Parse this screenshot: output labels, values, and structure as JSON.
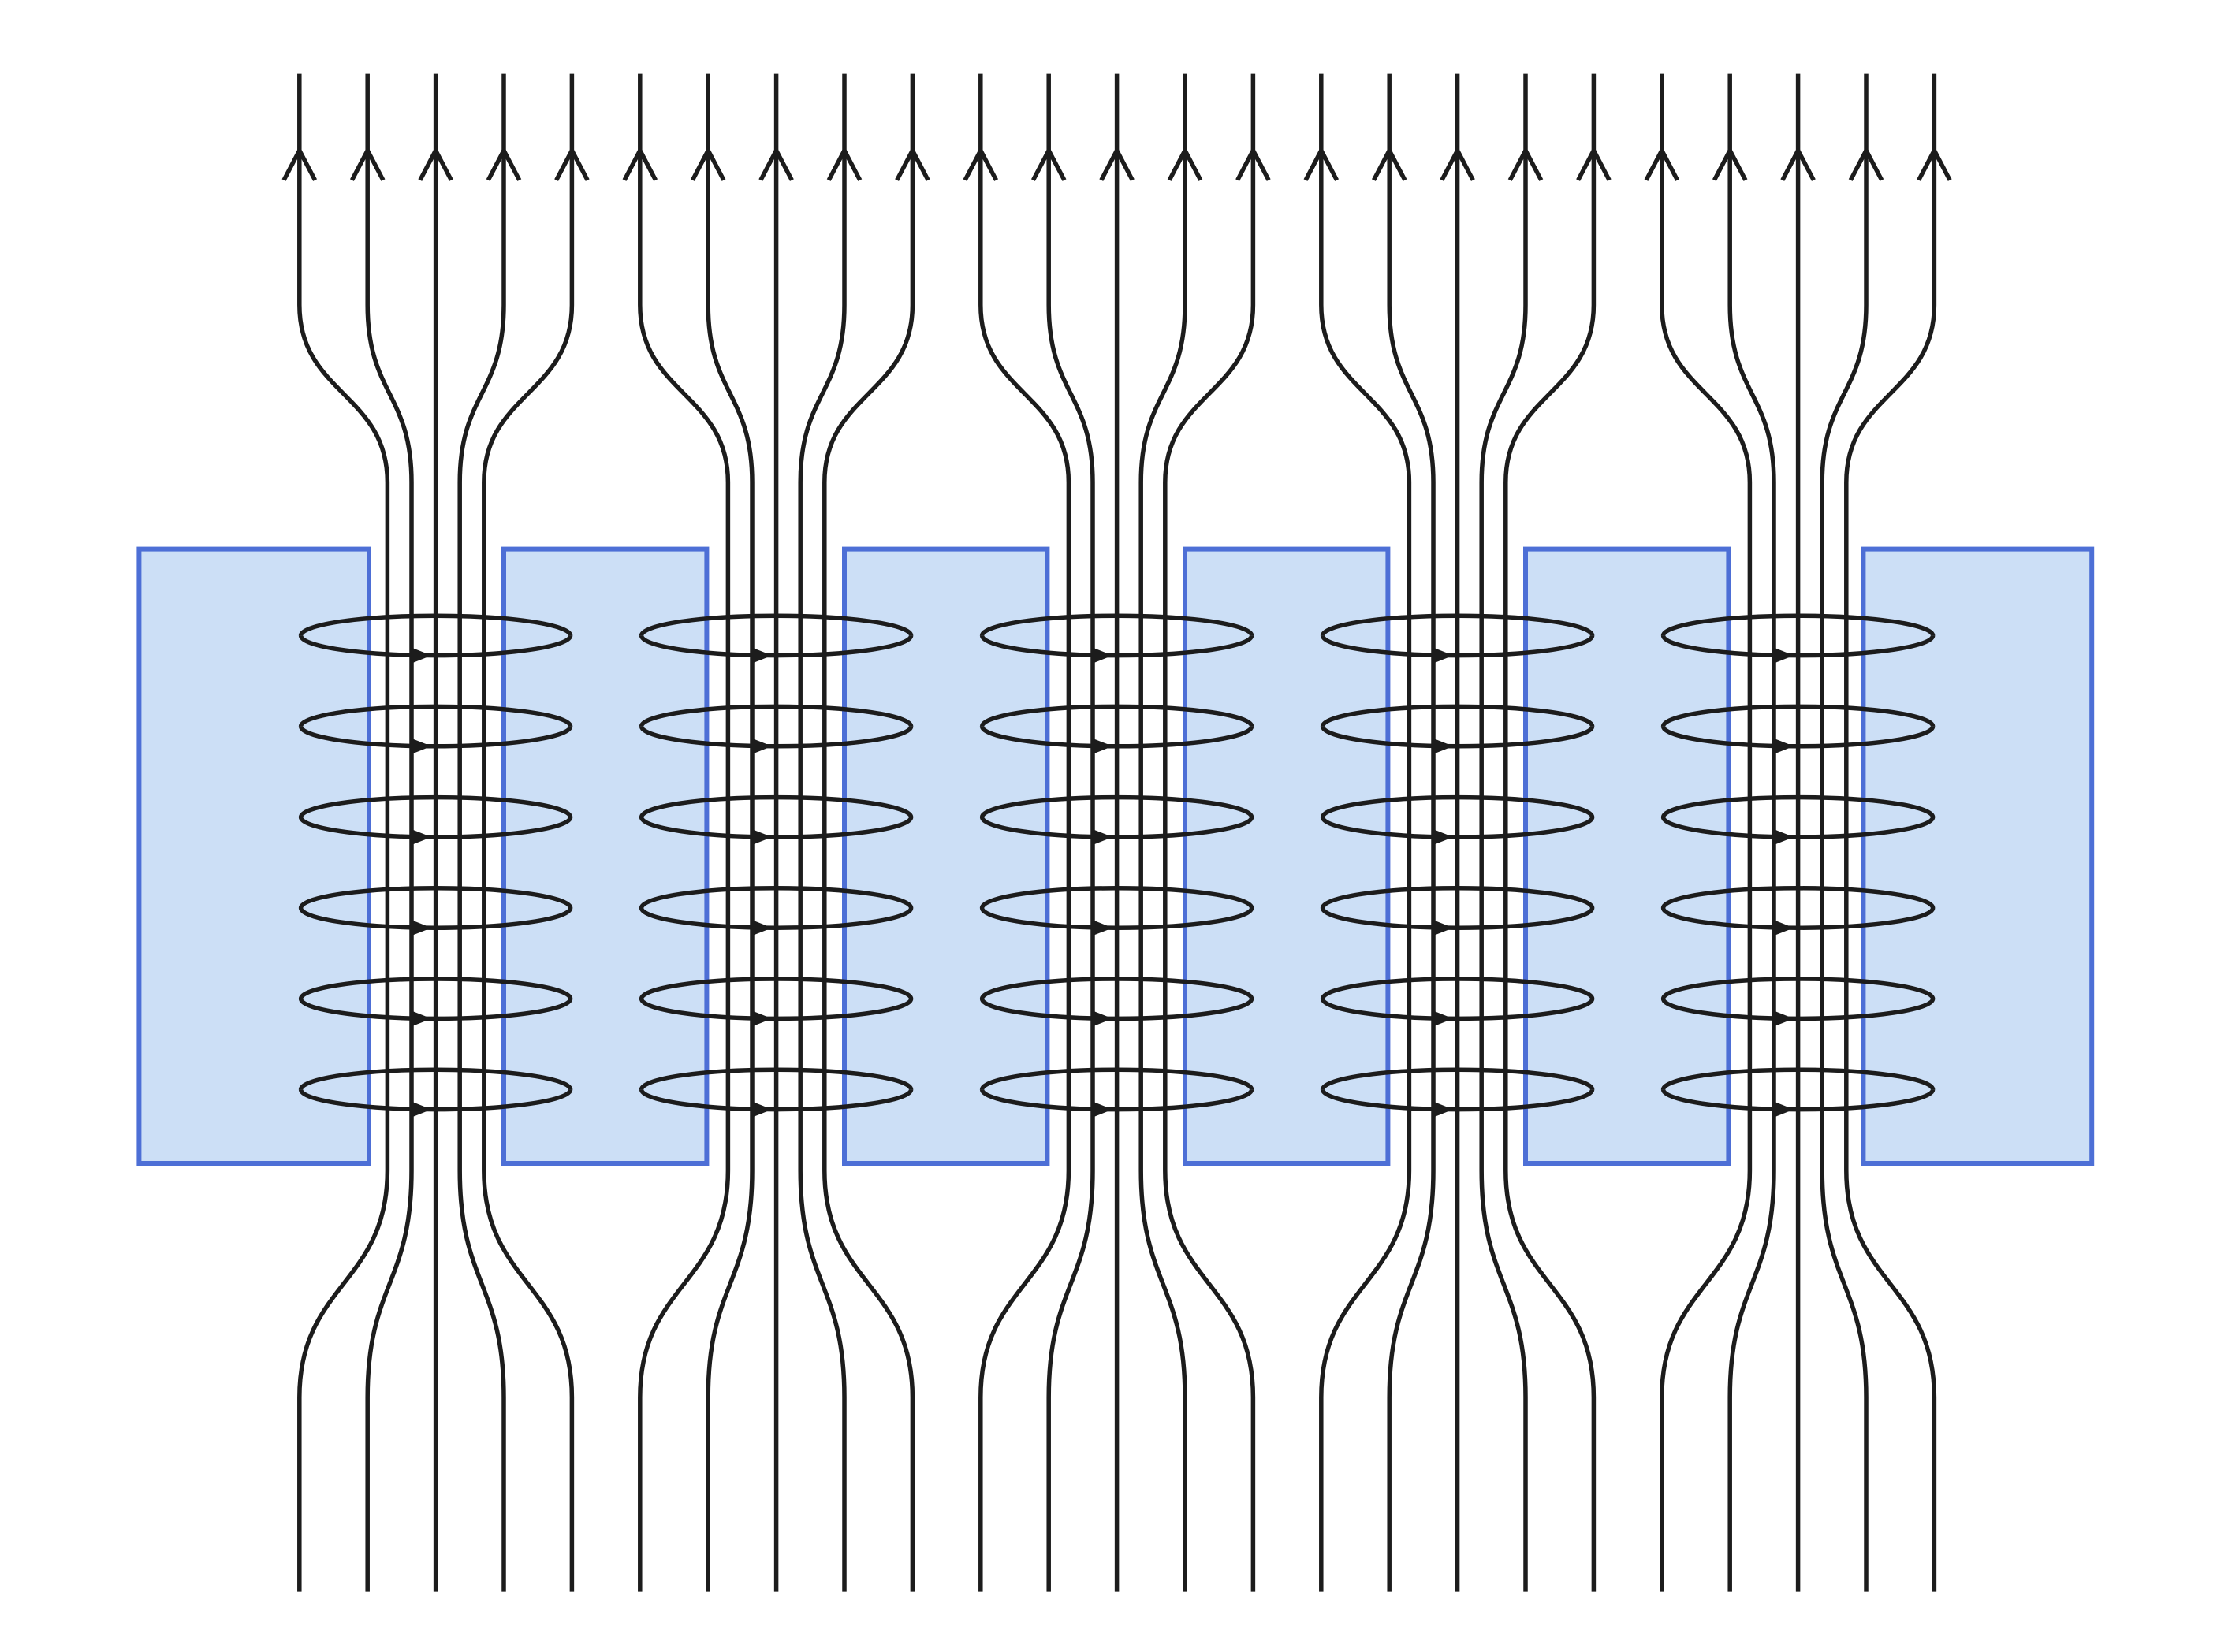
{
  "diagram": {
    "kind": "flux lines threading current loops between conductor plates",
    "colors": {
      "background": "#ffffff",
      "plate_fill": "#ccdff6",
      "plate_stroke": "#4d6fd6",
      "line": "#1c1c1c"
    },
    "counts": {
      "plates": 6,
      "channels": 5,
      "lines_per_channel": 5,
      "loops_per_channel": 6
    },
    "flux_direction": "up",
    "loop_arrow_direction": "right"
  }
}
